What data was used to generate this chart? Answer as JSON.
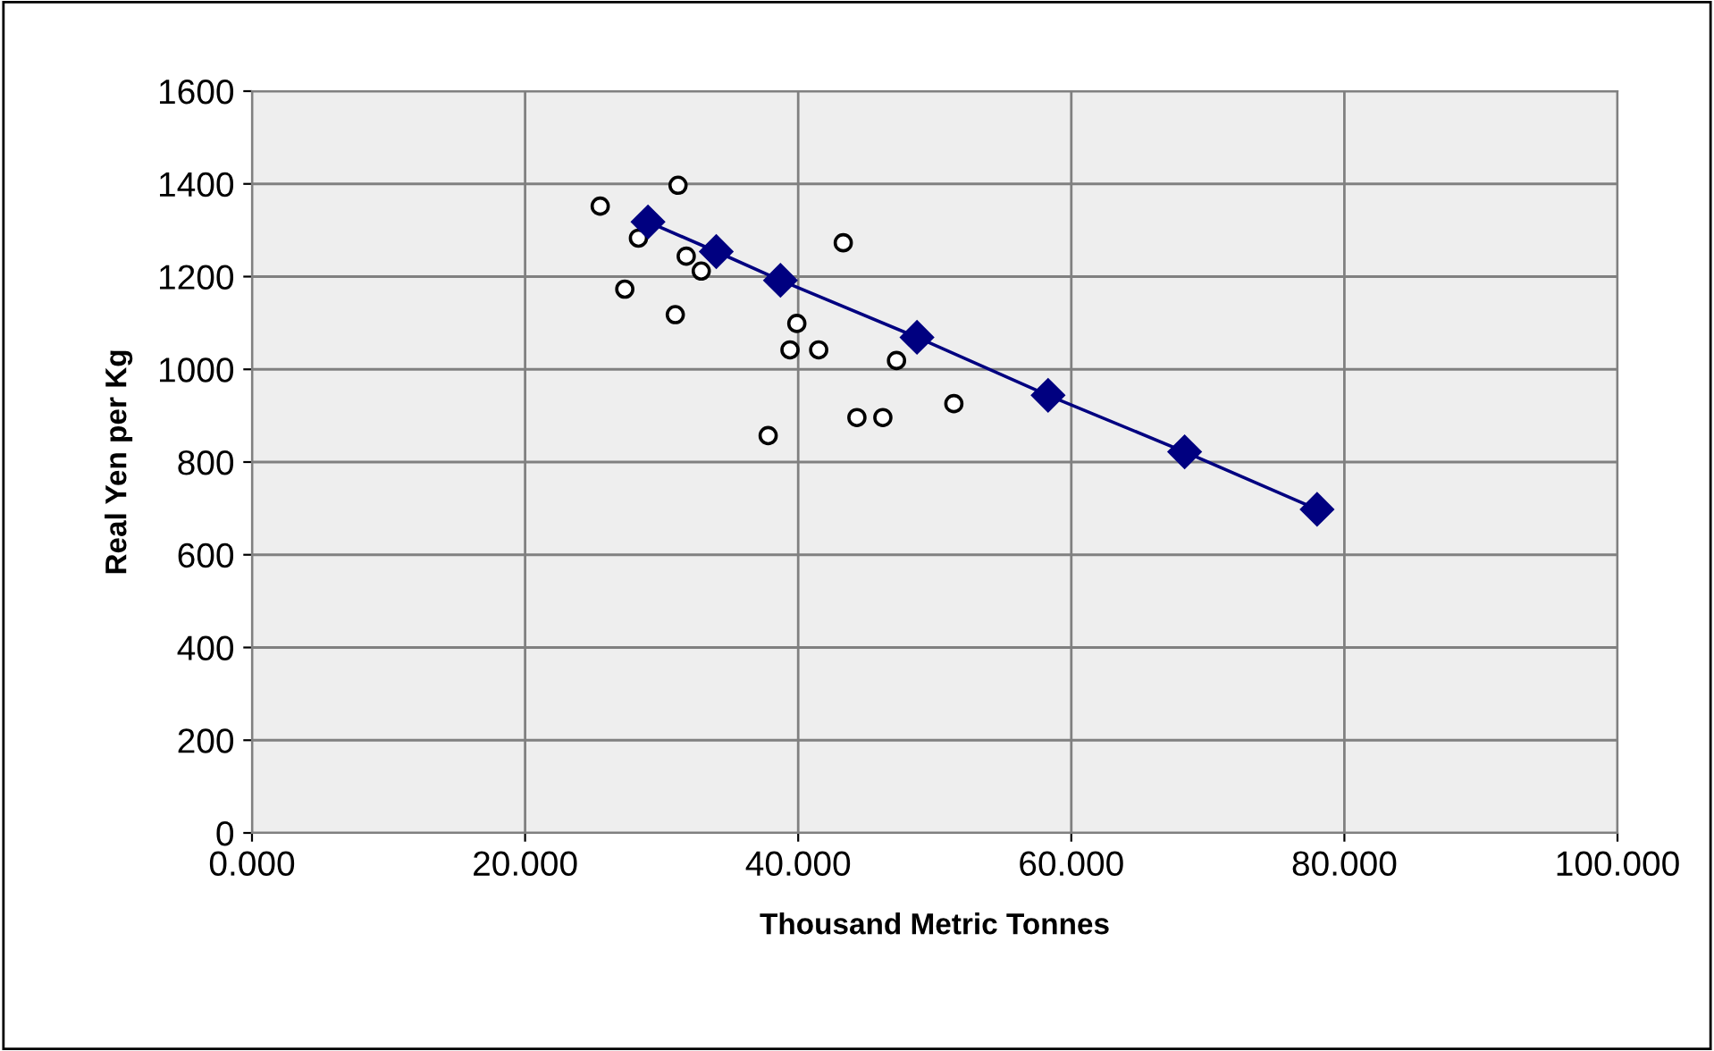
{
  "chart_data": {
    "type": "scatter",
    "xlabel": "Thousand Metric Tonnes",
    "ylabel": "Real Yen per Kg",
    "xlim": [
      0,
      100
    ],
    "xticks": [
      {
        "value": 0,
        "label": "0.000"
      },
      {
        "value": 20,
        "label": "20.000"
      },
      {
        "value": 40,
        "label": "40.000"
      },
      {
        "value": 60,
        "label": "60.000"
      },
      {
        "value": 80,
        "label": "80.000"
      },
      {
        "value": 100,
        "label": "100.000"
      }
    ],
    "ylim": [
      0,
      1600
    ],
    "yticks": [
      0,
      200,
      400,
      600,
      800,
      1000,
      1200,
      1400,
      1600
    ],
    "grid": true,
    "legend": false,
    "series": [
      {
        "marker": "circle",
        "color": "#ffffff",
        "x": [
          25.5,
          31.2,
          28.3,
          27.3,
          31.8,
          32.9,
          31.0,
          43.3,
          39.9,
          39.4,
          41.5,
          47.2,
          37.8,
          44.3,
          46.2,
          51.4
        ],
        "values": [
          1352,
          1397,
          1283,
          1173,
          1244,
          1212,
          1118,
          1273,
          1099,
          1042,
          1042,
          1019,
          857,
          896,
          896,
          926
        ]
      },
      {
        "type": "line",
        "marker": "diamond",
        "color": "#000080",
        "x": [
          29.0,
          34.0,
          38.7,
          48.7,
          58.3,
          68.3,
          78.0
        ],
        "values": [
          1318,
          1254,
          1192,
          1069,
          944,
          822,
          698
        ]
      }
    ]
  }
}
